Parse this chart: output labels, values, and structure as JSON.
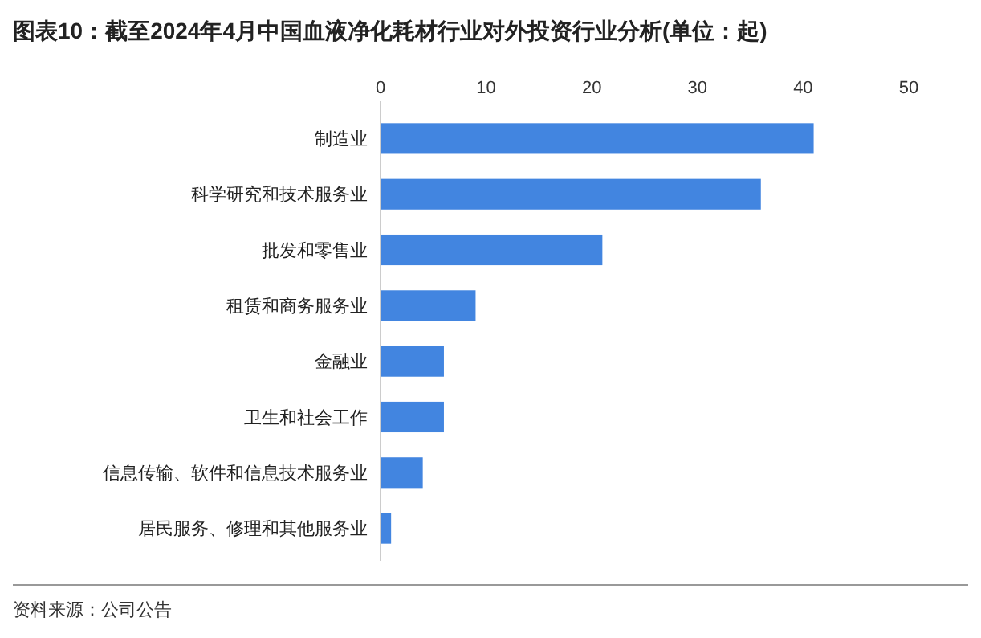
{
  "chart_data": {
    "type": "bar",
    "orientation": "horizontal",
    "title": "图表10：截至2024年4月中国血液净化耗材行业对外投资行业分析(单位：起)",
    "categories": [
      "制造业",
      "科学研究和技术服务业",
      "批发和零售业",
      "租赁和商务服务业",
      "金融业",
      "卫生和社会工作",
      "信息传输、软件和信息技术服务业",
      "居民服务、修理和其他服务业"
    ],
    "values": [
      41,
      36,
      21,
      9,
      6,
      6,
      4,
      1
    ],
    "color": "#4285e0",
    "xlim": [
      0,
      50
    ],
    "xticks": [
      0,
      10,
      20,
      30,
      40,
      50
    ],
    "grid": false,
    "annotations": [
      "资料来源：公司公告"
    ]
  }
}
